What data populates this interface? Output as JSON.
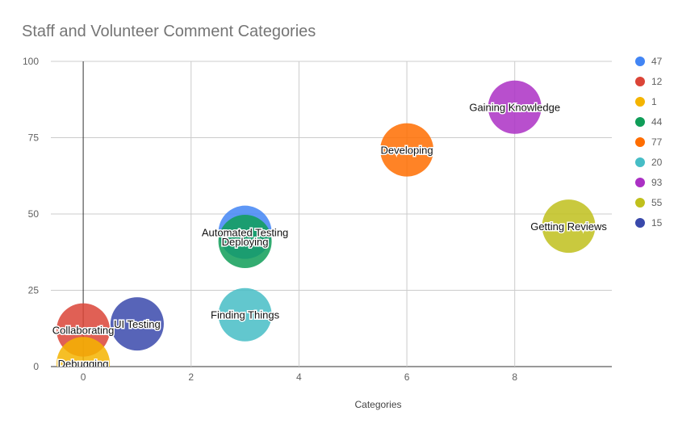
{
  "chart_data": {
    "type": "scatter",
    "title": "Staff and Volunteer Comment Categories",
    "xlabel": "Categories",
    "ylabel": "",
    "xlim": [
      -0.6,
      9.8
    ],
    "ylim": [
      0,
      100
    ],
    "x_ticks": [
      0,
      2,
      4,
      6,
      8
    ],
    "y_ticks": [
      0,
      25,
      50,
      75,
      100
    ],
    "grid": true,
    "legend_position": "right",
    "points": [
      {
        "label": "Automated Testing",
        "x": 3,
        "y": 44,
        "size": 47,
        "color": "#4285F4"
      },
      {
        "label": "Collaborating",
        "x": 0,
        "y": 12,
        "size": 12,
        "color": "#DB4437"
      },
      {
        "label": "Debugging",
        "x": 0,
        "y": 1,
        "size": 1,
        "color": "#F4B400"
      },
      {
        "label": "Deploying",
        "x": 3,
        "y": 41,
        "size": 44,
        "color": "#0F9D58"
      },
      {
        "label": "Developing",
        "x": 6,
        "y": 71,
        "size": 77,
        "color": "#FF6D00"
      },
      {
        "label": "Finding Things",
        "x": 3,
        "y": 17,
        "size": 20,
        "color": "#46BDC6"
      },
      {
        "label": "Gaining Knowledge",
        "x": 8,
        "y": 85,
        "size": 93,
        "color": "#AB30C4"
      },
      {
        "label": "Getting Reviews",
        "x": 9,
        "y": 46,
        "size": 55,
        "color": "#C0C01C"
      },
      {
        "label": "UI Testing",
        "x": 1,
        "y": 14,
        "size": 15,
        "color": "#3949AB"
      }
    ],
    "legend": [
      {
        "text": "47",
        "color": "#4285F4"
      },
      {
        "text": "12",
        "color": "#DB4437"
      },
      {
        "text": "1",
        "color": "#F4B400"
      },
      {
        "text": "44",
        "color": "#0F9D58"
      },
      {
        "text": "77",
        "color": "#FF6D00"
      },
      {
        "text": "20",
        "color": "#46BDC6"
      },
      {
        "text": "93",
        "color": "#AB30C4"
      },
      {
        "text": "55",
        "color": "#C0C01C"
      },
      {
        "text": "15",
        "color": "#3949AB"
      }
    ]
  }
}
